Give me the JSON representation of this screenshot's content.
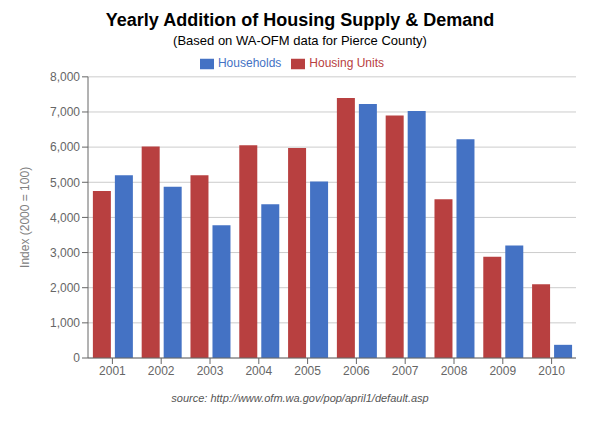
{
  "chart_data": {
    "type": "bar",
    "title": "Yearly Addition of Housing Supply & Demand",
    "subtitle": "(Based on WA-OFM data for Pierce County)",
    "y_label": "Index (2000 = 100)",
    "annotations": [
      "source: http://www.ofm.wa.gov/pop/april1/default.asp"
    ],
    "categories": [
      "2001",
      "2002",
      "2003",
      "2004",
      "2005",
      "2006",
      "2007",
      "2008",
      "2009",
      "2010"
    ],
    "series": [
      {
        "name": "Housing Units",
        "color": "#B84040",
        "values": [
          4750,
          6020,
          5200,
          6050,
          5975,
          7400,
          6900,
          4520,
          2880,
          2100
        ]
      },
      {
        "name": "Households",
        "color": "#4472C4",
        "values": [
          5200,
          4875,
          3775,
          4375,
          5025,
          7225,
          7025,
          6225,
          3200,
          375
        ]
      }
    ],
    "ylim": [
      0,
      8000
    ],
    "yticks": [
      0,
      {
        "value": 1000,
        "label": "1,000"
      },
      {
        "value": 2000,
        "label": "2,000"
      },
      {
        "value": 3000,
        "label": "3,000"
      },
      {
        "value": 4000,
        "label": "4,000"
      },
      {
        "value": 5000,
        "label": "5,000"
      },
      {
        "value": 6000,
        "label": "6,000"
      },
      {
        "value": 7000,
        "label": "7,000"
      },
      {
        "value": 8000,
        "label": "8,000"
      }
    ],
    "grid": true,
    "legend": "top"
  }
}
